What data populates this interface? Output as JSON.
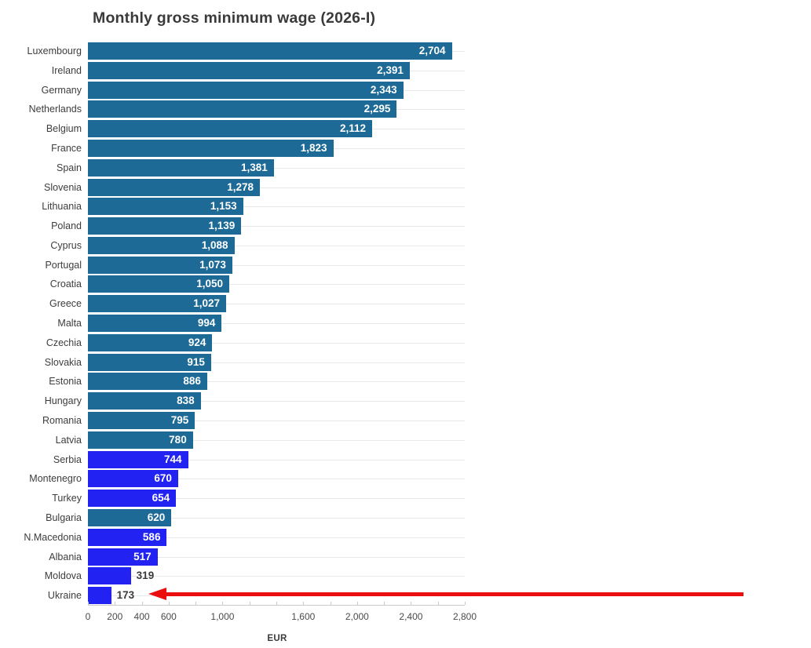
{
  "chart_data": {
    "type": "bar",
    "orientation": "horizontal",
    "title": "Monthly gross minimum wage (2026-I)",
    "xlabel": "EUR",
    "xlim": [
      0,
      2800
    ],
    "grid": "horizontal-row-lines",
    "legend": "none",
    "categories": [
      "Luxembourg",
      "Ireland",
      "Germany",
      "Netherlands",
      "Belgium",
      "France",
      "Spain",
      "Slovenia",
      "Lithuania",
      "Poland",
      "Cyprus",
      "Portugal",
      "Croatia",
      "Greece",
      "Malta",
      "Czechia",
      "Slovakia",
      "Estonia",
      "Hungary",
      "Romania",
      "Latvia",
      "Serbia",
      "Montenegro",
      "Turkey",
      "Bulgaria",
      "N.Macedonia",
      "Albania",
      "Moldova",
      "Ukraine"
    ],
    "values": [
      2704,
      2391,
      2343,
      2295,
      2112,
      1823,
      1381,
      1278,
      1153,
      1139,
      1088,
      1073,
      1050,
      1027,
      994,
      924,
      915,
      886,
      838,
      795,
      780,
      744,
      670,
      654,
      620,
      586,
      517,
      319,
      173
    ],
    "value_labels": [
      "2,704",
      "2,391",
      "2,343",
      "2,295",
      "2,112",
      "1,823",
      "1,381",
      "1,278",
      "1,153",
      "1,139",
      "1,088",
      "1,073",
      "1,050",
      "1,027",
      "994",
      "924",
      "915",
      "886",
      "838",
      "795",
      "780",
      "744",
      "670",
      "654",
      "620",
      "586",
      "517",
      "319",
      "173"
    ],
    "bar_colors": [
      "#1d6a96",
      "#1d6a96",
      "#1d6a96",
      "#1d6a96",
      "#1d6a96",
      "#1d6a96",
      "#1d6a96",
      "#1d6a96",
      "#1d6a96",
      "#1d6a96",
      "#1d6a96",
      "#1d6a96",
      "#1d6a96",
      "#1d6a96",
      "#1d6a96",
      "#1d6a96",
      "#1d6a96",
      "#1d6a96",
      "#1d6a96",
      "#1d6a96",
      "#1d6a96",
      "#2222f2",
      "#2222f2",
      "#2222f2",
      "#1d6a96",
      "#2222f2",
      "#2222f2",
      "#2222f2",
      "#2222f2"
    ],
    "palette": {
      "main_bar": "#1d6a96",
      "highlight_bar": "#2222f2"
    },
    "x_ticks": [
      {
        "v": 0,
        "label": "0"
      },
      {
        "v": 200,
        "label": "200"
      },
      {
        "v": 400,
        "label": "400"
      },
      {
        "v": 600,
        "label": "600"
      },
      {
        "v": 1000,
        "label": "1,000"
      },
      {
        "v": 1600,
        "label": "1,600"
      },
      {
        "v": 2000,
        "label": "2,000"
      },
      {
        "v": 2400,
        "label": "2,400"
      },
      {
        "v": 2800,
        "label": "2,800"
      }
    ],
    "minor_tick_step": 200,
    "annotation": {
      "type": "arrow",
      "points_to": "Ukraine",
      "color": "#ea0e0e"
    }
  }
}
